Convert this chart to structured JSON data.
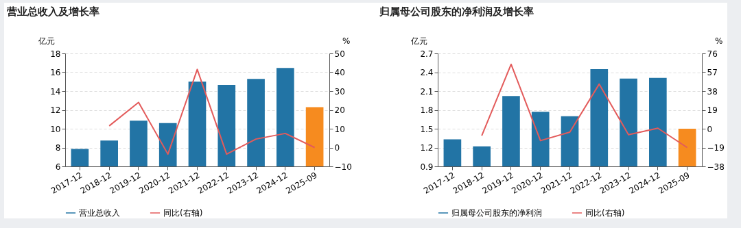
{
  "chart_data": [
    {
      "type": "bar",
      "title": "营业总收入及增长率",
      "ylabel": "亿元",
      "y2label": "%",
      "categories": [
        "2017-12",
        "2018-12",
        "2019-12",
        "2020-12",
        "2021-12",
        "2022-12",
        "2023-12",
        "2024-12",
        "2025-09"
      ],
      "series": [
        {
          "name": "营业总收入",
          "color": "#2274a5",
          "colors": [
            "#2274a5",
            "#2274a5",
            "#2274a5",
            "#2274a5",
            "#2274a5",
            "#2274a5",
            "#2274a5",
            "#2274a5",
            "#f68b1f"
          ],
          "values": [
            7.85,
            8.75,
            10.85,
            10.6,
            15.0,
            14.65,
            15.3,
            16.45,
            12.3
          ]
        },
        {
          "name": "同比(右轴)",
          "type": "line",
          "axis": "y2",
          "color": "#e35b5b",
          "values": [
            null,
            11.5,
            24,
            -3.5,
            41.5,
            -3.5,
            4.5,
            7.5,
            0
          ]
        }
      ],
      "ylim": [
        6,
        18
      ],
      "yticks": [
        6,
        8,
        10,
        12,
        14,
        16,
        18
      ],
      "y2lim": [
        -10,
        50
      ],
      "y2ticks": [
        -10,
        0,
        10,
        20,
        30,
        40,
        50
      ],
      "grid": "y",
      "legend": "bottom"
    },
    {
      "type": "bar",
      "title": "归属母公司股东的净利润及增长率",
      "ylabel": "亿元",
      "y2label": "%",
      "categories": [
        "2017-12",
        "2018-12",
        "2019-12",
        "2020-12",
        "2021-12",
        "2022-12",
        "2023-12",
        "2024-12",
        "2025-09"
      ],
      "series": [
        {
          "name": "归属母公司股东的净利润",
          "color": "#2274a5",
          "colors": [
            "#2274a5",
            "#2274a5",
            "#2274a5",
            "#2274a5",
            "#2274a5",
            "#2274a5",
            "#2274a5",
            "#2274a5",
            "#f68b1f"
          ],
          "values": [
            1.33,
            1.22,
            2.02,
            1.77,
            1.7,
            2.45,
            2.3,
            2.31,
            1.5
          ]
        },
        {
          "name": "同比(右轴)",
          "type": "line",
          "axis": "y2",
          "color": "#e35b5b",
          "values": [
            null,
            -7,
            65,
            -12,
            -3.5,
            45,
            -6,
            0.5,
            -19
          ]
        }
      ],
      "ylim": [
        0.9,
        2.7
      ],
      "yticks": [
        0.9,
        1.2,
        1.5,
        1.8,
        2.1,
        2.4,
        2.7
      ],
      "y2lim": [
        -38,
        76
      ],
      "y2ticks": [
        -38,
        -19,
        0,
        19,
        38,
        57,
        76
      ],
      "grid": "y",
      "legend": "bottom"
    }
  ]
}
